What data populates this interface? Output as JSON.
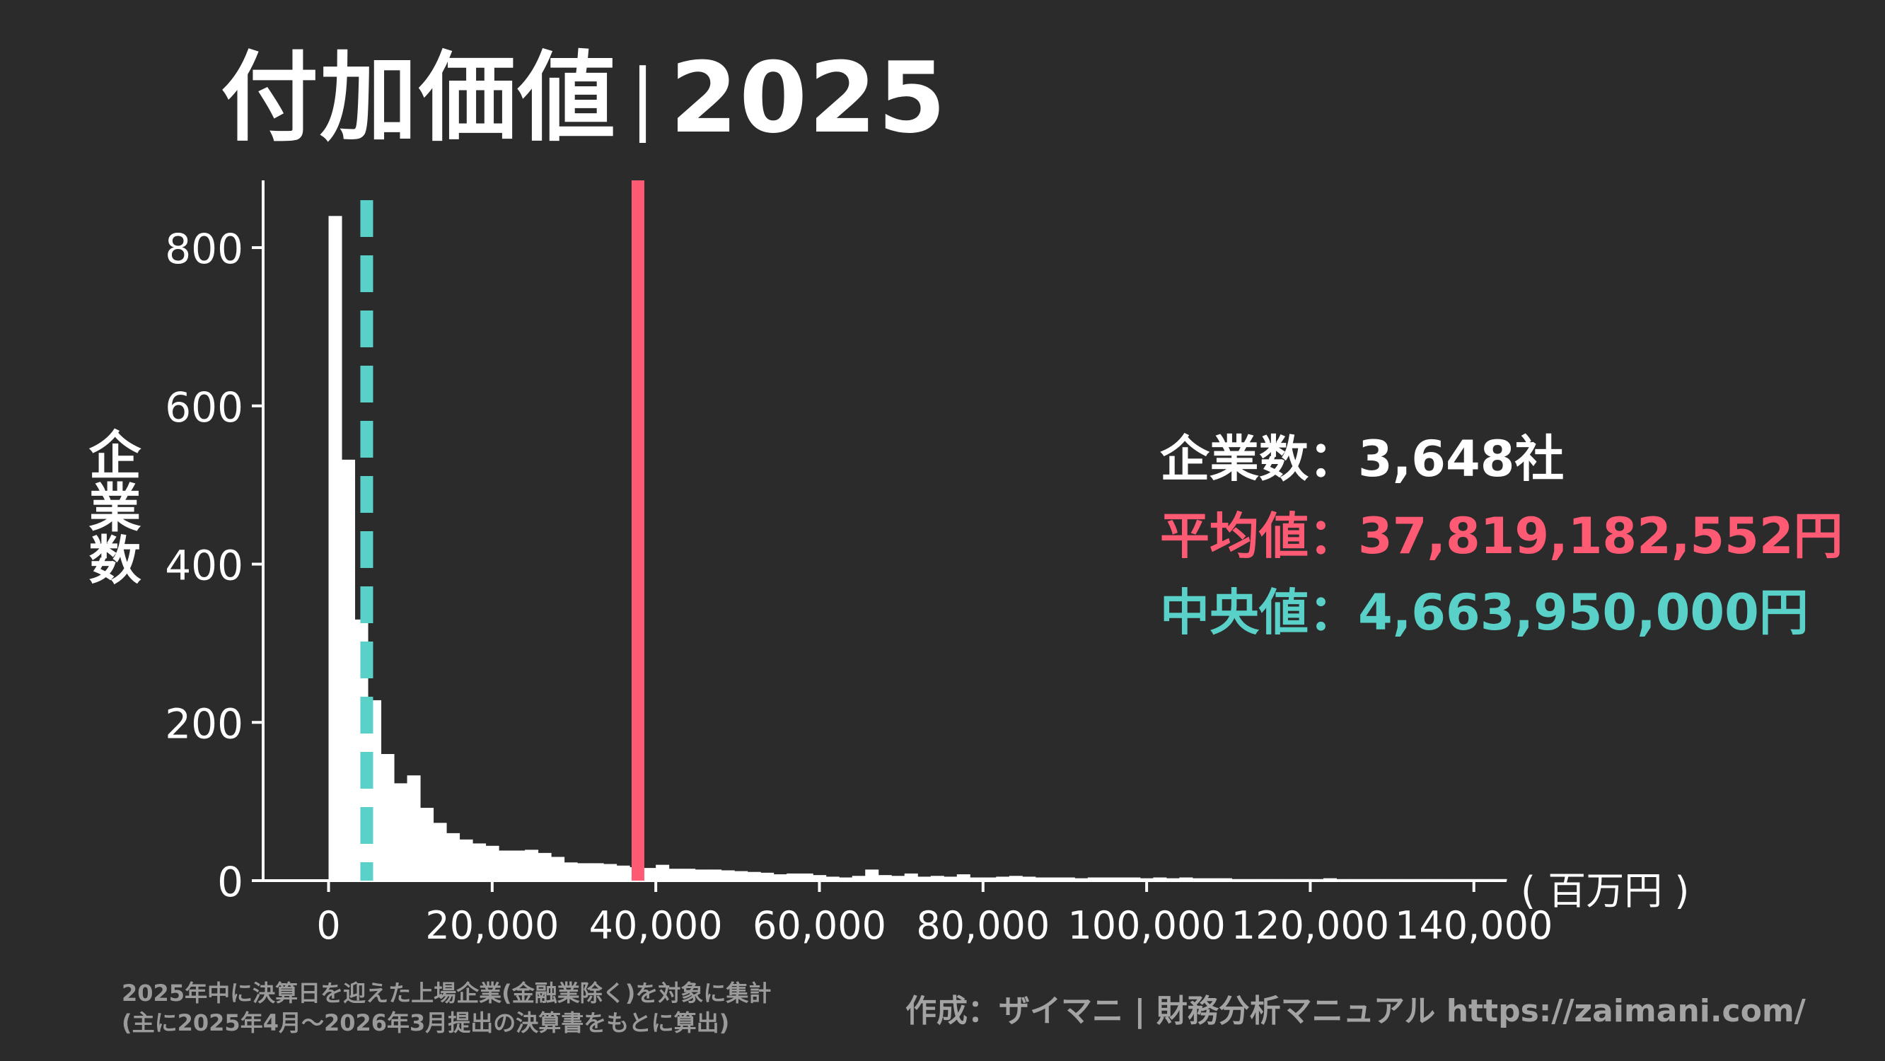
{
  "header": {
    "title_main": "付加価値",
    "separator": "|",
    "title_year": "2025"
  },
  "axis": {
    "ylabel": "企業数",
    "unit_label": "( 百万円 )"
  },
  "stats": {
    "companies_label": "企業数",
    "companies_value": "3,648社",
    "mean_label": "平均値",
    "mean_value": "37,819,182,552円",
    "median_label": "中央値",
    "median_value": "4,663,950,000円",
    "colon": "："
  },
  "footer": {
    "note_line1": "2025年中に決算日を迎えた上場企業(金融業除く)を対象に集計",
    "note_line2": "(主に2025年4月〜2026年3月提出の決算書をもとに算出)",
    "credit": "作成：ザイマニ | 財務分析マニュアル https://zaimani.com/"
  },
  "chart_data": {
    "type": "bar",
    "title": "付加価値｜2025",
    "xlabel": "( 百万円 )",
    "ylabel": "企業数",
    "xlim": [
      -8000,
      144000
    ],
    "ylim": [
      0,
      885
    ],
    "xticks": [
      0,
      20000,
      40000,
      60000,
      80000,
      100000,
      120000,
      140000
    ],
    "xtick_labels": [
      "0",
      "20,000",
      "40,000",
      "60,000",
      "80,000",
      "100,000",
      "120,000",
      "140,000"
    ],
    "yticks": [
      0,
      200,
      400,
      600,
      800
    ],
    "ytick_labels": [
      "0",
      "200",
      "400",
      "600",
      "800"
    ],
    "bin_width": 1600,
    "bin_start": 0,
    "counts": [
      840,
      532,
      330,
      228,
      160,
      123,
      133,
      92,
      73,
      60,
      52,
      47,
      44,
      38,
      38,
      39,
      35,
      30,
      23,
      22,
      22,
      21,
      19,
      17,
      16,
      20,
      15,
      15,
      14,
      14,
      13,
      12,
      11,
      10,
      8,
      9,
      9,
      7,
      5,
      4,
      6,
      14,
      7,
      6,
      9,
      5,
      6,
      5,
      8,
      4,
      4,
      5,
      6,
      5,
      4,
      4,
      4,
      3,
      4,
      4,
      4,
      4,
      3,
      4,
      3,
      4,
      3,
      3,
      3,
      2,
      2,
      2,
      2,
      2,
      2,
      2,
      3,
      2,
      2,
      2,
      2,
      2,
      2,
      2,
      2,
      2,
      2,
      2,
      2,
      2
    ],
    "mean": 37819.182552,
    "median": 4663.95,
    "colors": {
      "bars": "#ffffff",
      "mean_line": "#ff5a74",
      "median_line": "#5ad1c8",
      "background": "#2b2b2b"
    }
  }
}
